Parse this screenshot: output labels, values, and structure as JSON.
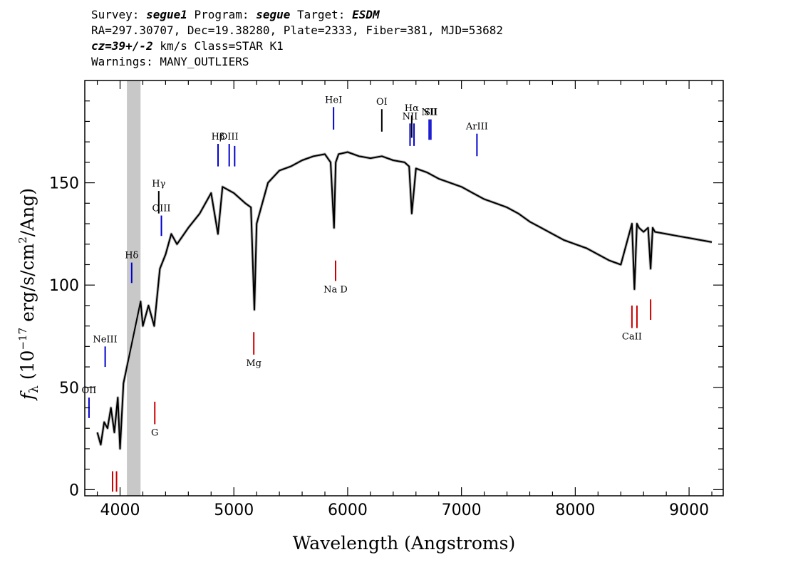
{
  "header": {
    "line1": [
      {
        "t": "Survey: ",
        "i": false
      },
      {
        "t": "segue1",
        "i": true
      },
      {
        "t": " Program: ",
        "i": false
      },
      {
        "t": "segue",
        "i": true
      },
      {
        "t": " Target: ",
        "i": false
      },
      {
        "t": "ESDM",
        "i": true
      }
    ],
    "line2": "RA=297.30707, Dec=19.38280, Plate=2333, Fiber=381, MJD=53682",
    "line3": [
      {
        "t": "cz=39+/-2",
        "i": true
      },
      {
        "t": " km/s Class=STAR K1",
        "i": false
      }
    ],
    "line4": "Warnings: MANY_OUTLIERS"
  },
  "chart_data": {
    "type": "line",
    "xlabel": "Wavelength (Angstroms)",
    "ylabel_parts": {
      "f": "f",
      "sub": "λ",
      "open": " (10",
      "exp1": "−17",
      "mid": " erg/s/cm",
      "exp2": "2",
      "close": "/Ang)"
    },
    "xlim": [
      3690,
      9300
    ],
    "ylim": [
      -3,
      200
    ],
    "xticks": [
      4000,
      5000,
      6000,
      7000,
      8000,
      9000
    ],
    "yticks": [
      0,
      50,
      100,
      150
    ],
    "masked_band": [
      4060,
      4180
    ],
    "spectrum": {
      "x": [
        3800,
        3830,
        3860,
        3890,
        3920,
        3950,
        3980,
        4000,
        4030,
        4060,
        4180,
        4200,
        4250,
        4300,
        4350,
        4400,
        4450,
        4500,
        4600,
        4700,
        4800,
        4860,
        4900,
        5000,
        5100,
        5150,
        5180,
        5200,
        5300,
        5400,
        5500,
        5600,
        5700,
        5800,
        5850,
        5880,
        5895,
        5920,
        6000,
        6100,
        6200,
        6300,
        6400,
        6500,
        6540,
        6563,
        6600,
        6700,
        6800,
        6900,
        7000,
        7100,
        7200,
        7300,
        7400,
        7500,
        7600,
        7700,
        7800,
        7900,
        8000,
        8100,
        8200,
        8300,
        8400,
        8498,
        8520,
        8542,
        8560,
        8600,
        8640,
        8662,
        8680,
        8700,
        8800,
        8900,
        9000,
        9100,
        9200
      ],
      "y": [
        28,
        22,
        33,
        30,
        40,
        28,
        45,
        20,
        52,
        60,
        92,
        80,
        90,
        80,
        108,
        115,
        125,
        120,
        128,
        135,
        145,
        125,
        148,
        145,
        140,
        138,
        88,
        130,
        150,
        156,
        158,
        161,
        163,
        164,
        160,
        128,
        160,
        164,
        165,
        163,
        162,
        163,
        161,
        160,
        158,
        135,
        157,
        155,
        152,
        150,
        148,
        145,
        142,
        140,
        138,
        135,
        131,
        128,
        125,
        122,
        120,
        118,
        115,
        112,
        110,
        130,
        98,
        130,
        128,
        126,
        128,
        108,
        128,
        126,
        125,
        124,
        123,
        122,
        121
      ],
      "color": "#000000"
    },
    "emission_lines": [
      {
        "label": "OII",
        "x": 3727,
        "y0": 35,
        "y1": 45,
        "color": "#0000cc"
      },
      {
        "label": "NeIII",
        "x": 3869,
        "y0": 60,
        "y1": 70,
        "color": "#0000cc"
      },
      {
        "label": "Hδ",
        "x": 4102,
        "y0": 101,
        "y1": 111,
        "color": "#0000cc"
      },
      {
        "label": "Hγ",
        "x": 4340,
        "y0": 135,
        "y1": 146,
        "color": "#000000"
      },
      {
        "label": "OIII",
        "x": 4363,
        "y0": 124,
        "y1": 134,
        "color": "#0000cc"
      },
      {
        "label": "Hβ",
        "x": 4861,
        "y0": 158,
        "y1": 169,
        "color": "#0000cc"
      },
      {
        "label": "OIII",
        "x": 4959,
        "y0": 158,
        "y1": 169,
        "color": "#0000cc"
      },
      {
        "label": "",
        "x": 5007,
        "y0": 158,
        "y1": 168,
        "color": "#0000cc"
      },
      {
        "label": "HeI",
        "x": 5876,
        "y0": 176,
        "y1": 187,
        "color": "#0000cc"
      },
      {
        "label": "OI",
        "x": 6300,
        "y0": 175,
        "y1": 186,
        "color": "#000000"
      },
      {
        "label": "NII",
        "x": 6548,
        "y0": 168,
        "y1": 179,
        "color": "#0000cc"
      },
      {
        "label": "Hα",
        "x": 6563,
        "y0": 172,
        "y1": 183,
        "color": "#000000"
      },
      {
        "label": "",
        "x": 6583,
        "y0": 168,
        "y1": 179,
        "color": "#0000cc"
      },
      {
        "label": "NII",
        "x": 6716,
        "y0": 171,
        "y1": 181,
        "color": "#0000cc"
      },
      {
        "label": "SII",
        "x": 6731,
        "y0": 171,
        "y1": 181,
        "color": "#0000cc"
      },
      {
        "label": "ArIII",
        "x": 7136,
        "y0": 163,
        "y1": 174,
        "color": "#0000cc"
      }
    ],
    "absorption_lines": [
      {
        "label": "",
        "x": 3934,
        "y0": -1,
        "y1": 9,
        "color": "#cc0000"
      },
      {
        "label": "",
        "x": 3969,
        "y0": -1,
        "y1": 9,
        "color": "#cc0000"
      },
      {
        "label": "G",
        "x": 4305,
        "y0": 32,
        "y1": 43,
        "color": "#cc0000"
      },
      {
        "label": "Mg",
        "x": 5175,
        "y0": 66,
        "y1": 77,
        "color": "#cc0000"
      },
      {
        "label": "Na  D",
        "x": 5894,
        "y0": 102,
        "y1": 112,
        "color": "#cc0000"
      },
      {
        "label": "CaII",
        "x": 8498,
        "y0": 79,
        "y1": 90,
        "color": "#cc0000"
      },
      {
        "label": "",
        "x": 8542,
        "y0": 79,
        "y1": 90,
        "color": "#cc0000"
      },
      {
        "label": "",
        "x": 8662,
        "y0": 83,
        "y1": 93,
        "color": "#cc0000"
      }
    ]
  }
}
